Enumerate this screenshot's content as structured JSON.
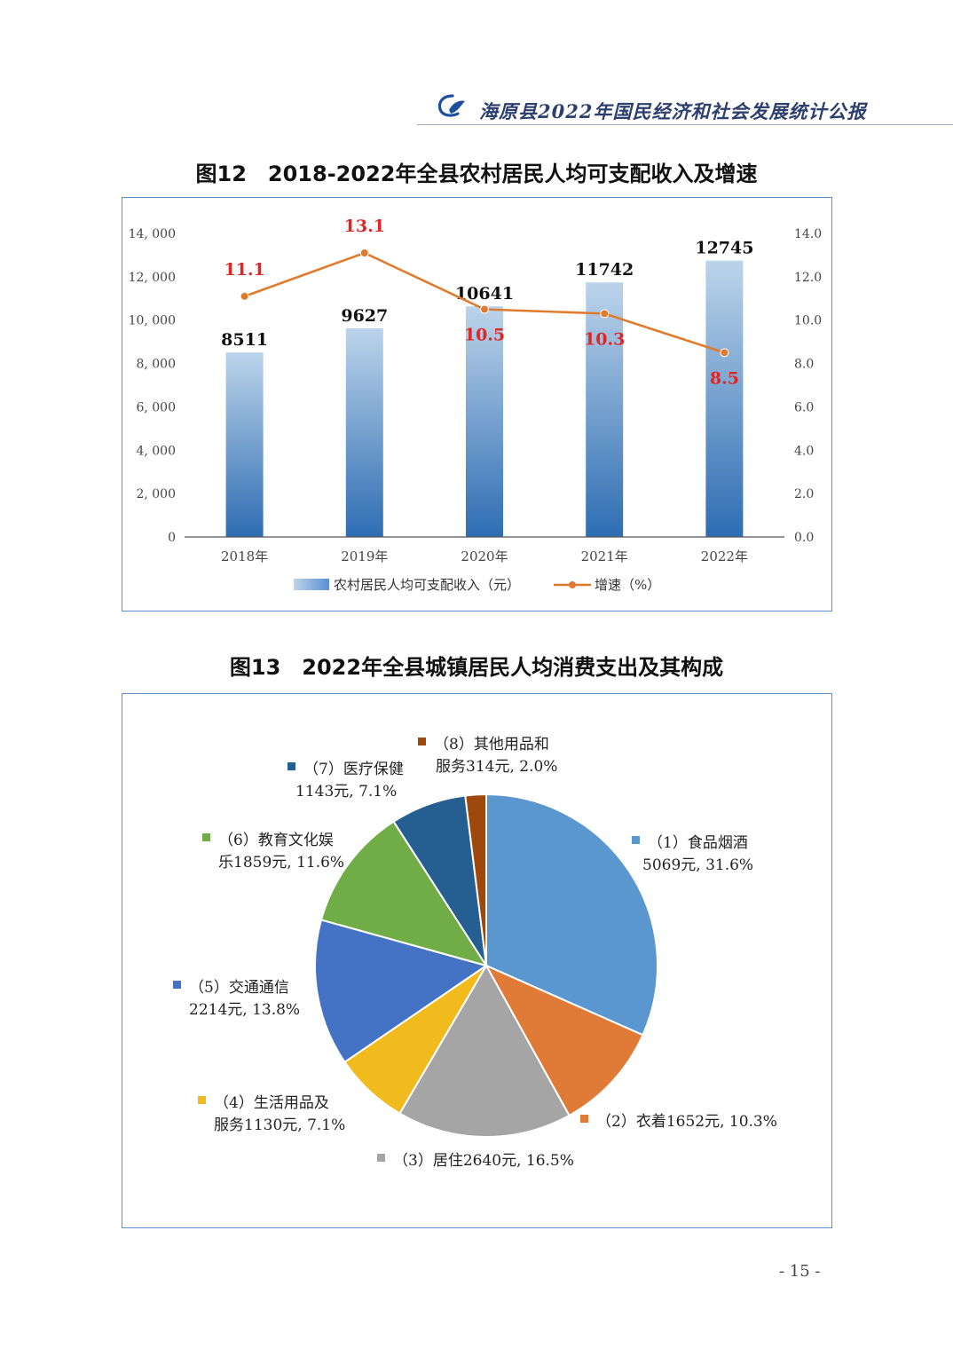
{
  "header": {
    "title": "海原县2022年国民经济和社会发展统计公报",
    "colors": {
      "accent": "#2d3f6e",
      "logo_blue": "#1d4f9c"
    }
  },
  "figure12": {
    "title": "图12　2018-2022年全县农村居民人均可支配收入及增速",
    "chart_data": {
      "type": "bar",
      "categories": [
        "2018年",
        "2019年",
        "2020年",
        "2021年",
        "2022年"
      ],
      "series": [
        {
          "name": "农村居民人均可支配收入（元）",
          "type": "bar",
          "axis": "left",
          "values": [
            8511,
            9627,
            10641,
            11742,
            12745
          ],
          "color": "#4f86c2",
          "value_labels": [
            "8511",
            "9627",
            "10641",
            "11742",
            "12745"
          ]
        },
        {
          "name": "增速（%）",
          "type": "line",
          "axis": "right",
          "values": [
            11.1,
            13.1,
            10.5,
            10.3,
            8.5
          ],
          "color": "#e07b2e",
          "value_labels": [
            "11.1",
            "13.1",
            "10.5",
            "10.3",
            "8.5"
          ]
        }
      ],
      "left_axis": {
        "ylim": [
          0,
          14000
        ],
        "ticks": [
          0,
          2000,
          4000,
          6000,
          8000,
          10000,
          12000,
          14000
        ],
        "tick_labels": [
          "0",
          "2, 000",
          "4, 000",
          "6, 000",
          "8, 000",
          "10, 000",
          "12, 000",
          "14, 000"
        ]
      },
      "right_axis": {
        "ylim": [
          0,
          14
        ],
        "ticks": [
          0,
          2,
          4,
          6,
          8,
          10,
          12,
          14
        ],
        "tick_labels": [
          "0.0",
          "2.0",
          "4.0",
          "6.0",
          "8.0",
          "10.0",
          "12.0",
          "14.0"
        ]
      },
      "grid": false,
      "legend": "bottom",
      "label_color_growth": "#e02525"
    }
  },
  "figure13": {
    "title": "图13　2022年全县城镇居民人均消费支出及其构成",
    "chart_data": {
      "type": "pie",
      "slices": [
        {
          "label_line1": "（1）食品烟酒",
          "label_line2": "5069元, 31.6%",
          "value": 5069,
          "percent": 31.6,
          "color": "#5b97cf"
        },
        {
          "label_line1": "（2）衣着1652元, 10.3%",
          "label_line2": "",
          "value": 1652,
          "percent": 10.3,
          "color": "#e07b37"
        },
        {
          "label_line1": "（3）居住2640元, 16.5%",
          "label_line2": "",
          "value": 2640,
          "percent": 16.5,
          "color": "#a5a5a5"
        },
        {
          "label_line1": "（4）生活用品及",
          "label_line2": "服务1130元, 7.1%",
          "value": 1130,
          "percent": 7.1,
          "color": "#f2bb1d"
        },
        {
          "label_line1": "（5）交通通信",
          "label_line2": "2214元, 13.8%",
          "value": 2214,
          "percent": 13.8,
          "color": "#4472c4"
        },
        {
          "label_line1": "（6）教育文化娱",
          "label_line2": "乐1859元, 11.6%",
          "value": 1859,
          "percent": 11.6,
          "color": "#70ad47"
        },
        {
          "label_line1": "（7）医疗保健",
          "label_line2": "1143元, 7.1%",
          "value": 1143,
          "percent": 7.1,
          "color": "#255e91"
        },
        {
          "label_line1": "（8）其他用品和",
          "label_line2": "服务314元, 2.0%",
          "value": 314,
          "percent": 2.0,
          "color": "#9e480e"
        }
      ],
      "start": "12 o'clock, clockwise",
      "legend": "labels beside slices"
    }
  },
  "page_number": "- 15 -"
}
